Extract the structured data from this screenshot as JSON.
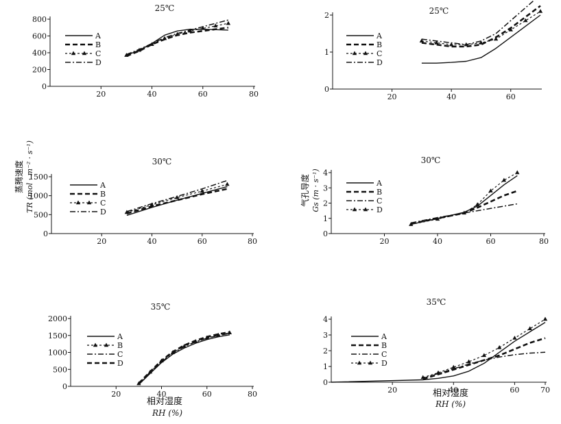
{
  "figure": {
    "left_ylabel_line1": "蒸腾速度",
    "left_ylabel_line2": "TR (mol · m⁻² · s⁻¹)",
    "right_ylabel_line1": "气孔导度",
    "right_ylabel_line2": "Gs (m · s⁻¹)",
    "bottom_xlabel_line1": "相对湿度",
    "bottom_xlabel_line2": "RH (%)"
  },
  "chart_data": [
    {
      "type": "line",
      "title": "25℃",
      "xlim": [
        0,
        80
      ],
      "ylim": [
        0,
        800
      ],
      "xticks": [
        20,
        40,
        60,
        80
      ],
      "yticks": [
        0,
        200,
        400,
        600,
        800
      ],
      "legend_position": "top-left",
      "series": [
        {
          "name": "A",
          "style": "solid",
          "x": [
            30,
            35,
            40,
            45,
            50,
            55,
            60,
            65,
            70
          ],
          "y": [
            370,
            430,
            510,
            610,
            660,
            680,
            680,
            675,
            670
          ]
        },
        {
          "name": "B",
          "style": "dashed",
          "x": [
            30,
            35,
            40,
            45,
            50,
            55,
            60,
            65,
            70
          ],
          "y": [
            360,
            420,
            500,
            560,
            610,
            640,
            660,
            680,
            700
          ]
        },
        {
          "name": "C",
          "style": "triangle",
          "x": [
            30,
            35,
            40,
            45,
            50,
            55,
            60,
            65,
            70
          ],
          "y": [
            370,
            430,
            500,
            570,
            620,
            660,
            690,
            720,
            750
          ]
        },
        {
          "name": "D",
          "style": "dashdot",
          "x": [
            30,
            35,
            40,
            45,
            50,
            55,
            60,
            65,
            70
          ],
          "y": [
            380,
            440,
            510,
            580,
            630,
            670,
            710,
            750,
            790
          ]
        }
      ]
    },
    {
      "type": "line",
      "title": "25℃",
      "xlim": [
        0,
        70
      ],
      "ylim": [
        0,
        2
      ],
      "xticks": [
        20,
        40,
        60
      ],
      "yticks": [
        0,
        1,
        2
      ],
      "legend_position": "top-left",
      "series": [
        {
          "name": "A",
          "style": "solid",
          "x": [
            30,
            35,
            40,
            45,
            50,
            55,
            60,
            65,
            70
          ],
          "y": [
            0.7,
            0.7,
            0.72,
            0.75,
            0.85,
            1.1,
            1.4,
            1.7,
            2.0
          ]
        },
        {
          "name": "B",
          "style": "dashed",
          "x": [
            30,
            35,
            40,
            45,
            50,
            55,
            60,
            65,
            70
          ],
          "y": [
            1.25,
            1.2,
            1.15,
            1.15,
            1.2,
            1.4,
            1.65,
            1.95,
            2.25
          ]
        },
        {
          "name": "C",
          "style": "triangle",
          "x": [
            30,
            35,
            40,
            45,
            50,
            55,
            60,
            65,
            70
          ],
          "y": [
            1.3,
            1.25,
            1.2,
            1.2,
            1.25,
            1.35,
            1.6,
            1.85,
            2.1
          ]
        },
        {
          "name": "D",
          "style": "dashdot",
          "x": [
            30,
            35,
            40,
            45,
            50,
            55,
            60,
            65,
            70
          ],
          "y": [
            1.35,
            1.3,
            1.25,
            1.2,
            1.3,
            1.5,
            1.85,
            2.2,
            2.55
          ]
        }
      ]
    },
    {
      "type": "line",
      "title": "30℃",
      "xlim": [
        0,
        80
      ],
      "ylim": [
        0,
        1500
      ],
      "xticks": [
        20,
        40,
        60,
        80
      ],
      "yticks": [
        0,
        500,
        1000,
        1500
      ],
      "legend_position": "top-left",
      "series": [
        {
          "name": "A",
          "style": "solid",
          "x": [
            30,
            40,
            50,
            60,
            70
          ],
          "y": [
            480,
            690,
            880,
            1060,
            1240
          ]
        },
        {
          "name": "B",
          "style": "dashed",
          "x": [
            30,
            40,
            50,
            60,
            70
          ],
          "y": [
            530,
            720,
            880,
            1040,
            1180
          ]
        },
        {
          "name": "C",
          "style": "triangle",
          "x": [
            30,
            40,
            50,
            60,
            70
          ],
          "y": [
            560,
            760,
            950,
            1120,
            1300
          ]
        },
        {
          "name": "D",
          "style": "dashdot",
          "x": [
            30,
            40,
            50,
            60,
            70
          ],
          "y": [
            580,
            790,
            980,
            1180,
            1400
          ]
        }
      ]
    },
    {
      "type": "line",
      "title": "30℃",
      "xlim": [
        0,
        80
      ],
      "ylim": [
        0,
        4
      ],
      "xticks": [
        20,
        40,
        60,
        80
      ],
      "yticks": [
        0,
        1,
        2,
        3,
        4
      ],
      "legend_position": "top-left",
      "series": [
        {
          "name": "A",
          "style": "solid",
          "x": [
            30,
            40,
            50,
            55,
            60,
            65,
            70
          ],
          "y": [
            0.6,
            1.0,
            1.4,
            1.8,
            2.5,
            3.2,
            3.8
          ]
        },
        {
          "name": "B",
          "style": "dashed",
          "x": [
            30,
            40,
            50,
            55,
            60,
            65,
            70
          ],
          "y": [
            0.65,
            1.0,
            1.35,
            1.7,
            2.1,
            2.5,
            2.8
          ]
        },
        {
          "name": "C",
          "style": "dashdot",
          "x": [
            30,
            40,
            50,
            60,
            70
          ],
          "y": [
            0.7,
            1.05,
            1.35,
            1.65,
            1.95
          ]
        },
        {
          "name": "D",
          "style": "triangle",
          "x": [
            30,
            40,
            50,
            55,
            60,
            65,
            70
          ],
          "y": [
            0.6,
            0.95,
            1.35,
            1.9,
            2.8,
            3.5,
            4.0
          ]
        }
      ]
    },
    {
      "type": "line",
      "title": "35℃",
      "xlim": [
        0,
        80
      ],
      "ylim": [
        0,
        2000
      ],
      "xticks": [
        20,
        40,
        60,
        80
      ],
      "yticks": [
        0,
        500,
        1000,
        1500,
        2000
      ],
      "legend_position": "top-left",
      "series": [
        {
          "name": "A",
          "style": "solid",
          "x": [
            30,
            35,
            40,
            45,
            50,
            55,
            60,
            65,
            70
          ],
          "y": [
            50,
            380,
            700,
            950,
            1130,
            1270,
            1380,
            1460,
            1520
          ]
        },
        {
          "name": "B",
          "style": "triangle",
          "x": [
            30,
            35,
            40,
            45,
            50,
            55,
            60,
            65,
            70
          ],
          "y": [
            80,
            420,
            750,
            1000,
            1180,
            1320,
            1430,
            1510,
            1580
          ]
        },
        {
          "name": "C",
          "style": "dashdot",
          "x": [
            30,
            35,
            40,
            45,
            50,
            55,
            60,
            65,
            70
          ],
          "y": [
            70,
            400,
            720,
            980,
            1170,
            1310,
            1420,
            1500,
            1560
          ]
        },
        {
          "name": "D",
          "style": "dashed",
          "x": [
            30,
            35,
            40,
            45,
            50,
            55,
            60,
            65,
            70
          ],
          "y": [
            90,
            430,
            760,
            1020,
            1210,
            1350,
            1460,
            1540,
            1600
          ]
        }
      ]
    },
    {
      "type": "line",
      "title": "35℃",
      "xlim": [
        0,
        70
      ],
      "ylim": [
        0,
        4
      ],
      "xticks": [
        20,
        40,
        60,
        70
      ],
      "yticks": [
        0,
        1,
        2,
        3,
        4
      ],
      "legend_position": "top-left",
      "series": [
        {
          "name": "A",
          "style": "solid",
          "x": [
            0,
            30,
            35,
            40,
            45,
            50,
            55,
            60,
            65,
            70
          ],
          "y": [
            0,
            0.15,
            0.25,
            0.4,
            0.7,
            1.2,
            1.9,
            2.6,
            3.2,
            3.8
          ]
        },
        {
          "name": "B",
          "style": "dashed",
          "x": [
            30,
            35,
            40,
            45,
            50,
            55,
            60,
            65,
            70
          ],
          "y": [
            0.2,
            0.5,
            0.8,
            1.1,
            1.4,
            1.7,
            2.1,
            2.5,
            2.8
          ]
        },
        {
          "name": "C",
          "style": "dashdot",
          "x": [
            30,
            35,
            40,
            45,
            50,
            55,
            60,
            65,
            70
          ],
          "y": [
            0.25,
            0.55,
            0.85,
            1.15,
            1.4,
            1.6,
            1.75,
            1.85,
            1.9
          ]
        },
        {
          "name": "D",
          "style": "triangle",
          "x": [
            30,
            35,
            40,
            45,
            50,
            55,
            60,
            65,
            70
          ],
          "y": [
            0.3,
            0.6,
            0.95,
            1.3,
            1.7,
            2.2,
            2.8,
            3.4,
            4.0
          ]
        }
      ]
    }
  ]
}
